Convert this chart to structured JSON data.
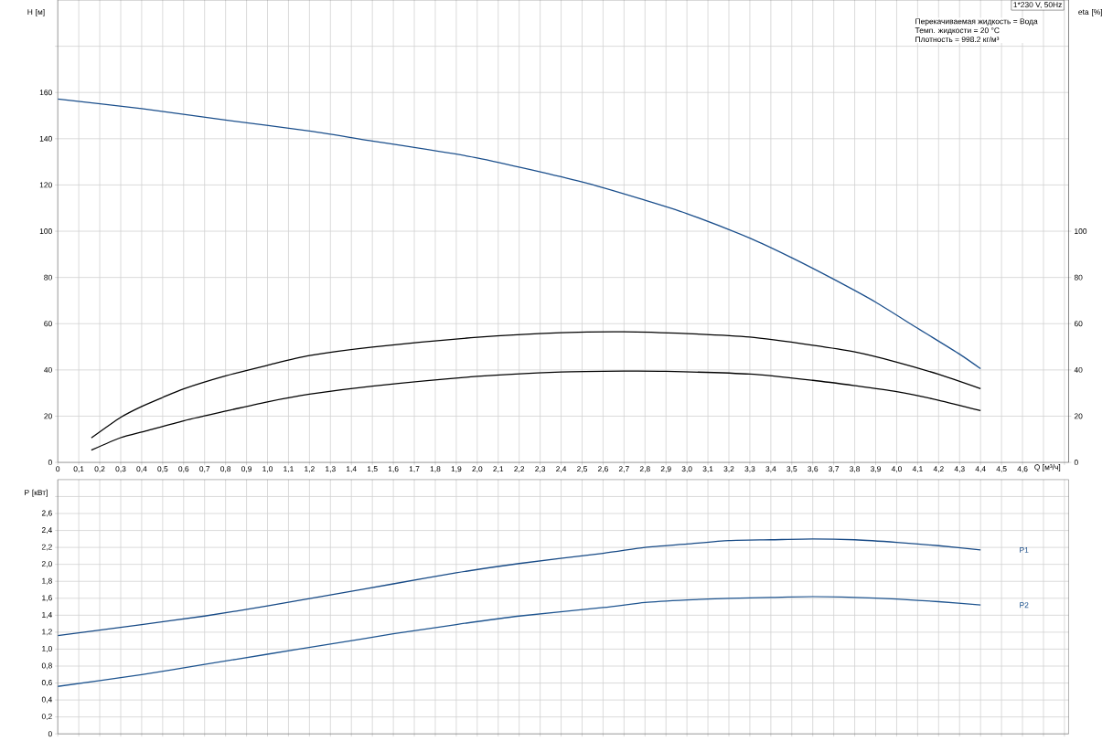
{
  "chart_data": [
    {
      "type": "line",
      "ylabel": "H [м]",
      "y2label": "eta [%]",
      "xlabel": "Q [м³/ч]",
      "annotations": [
        "1*230 V, 50Hz",
        "Перекачиваемая жидкость = Вода",
        "Темп. жидкости = 20 °C",
        "Плотность = 998.2 кг/м³"
      ],
      "xlim": [
        0,
        4.82
      ],
      "ylim": [
        0,
        200
      ],
      "y2lim": [
        0,
        200
      ],
      "grid": true,
      "xticks": [
        0,
        {
          "value": 0.1,
          "label": "0,1"
        },
        {
          "value": 0.2,
          "label": "0,2"
        },
        {
          "value": 0.3,
          "label": "0,3"
        },
        {
          "value": 0.4,
          "label": "0,4"
        },
        {
          "value": 0.5,
          "label": "0,5"
        },
        {
          "value": 0.6,
          "label": "0,6"
        },
        {
          "value": 0.7,
          "label": "0,7"
        },
        {
          "value": 0.8,
          "label": "0,8"
        },
        {
          "value": 0.9,
          "label": "0,9"
        },
        {
          "value": 1.0,
          "label": "1,0"
        },
        {
          "value": 1.1,
          "label": "1,1"
        },
        {
          "value": 1.2,
          "label": "1,2"
        },
        {
          "value": 1.3,
          "label": "1,3"
        },
        {
          "value": 1.4,
          "label": "1,4"
        },
        {
          "value": 1.5,
          "label": "1,5"
        },
        {
          "value": 1.6,
          "label": "1,6"
        },
        {
          "value": 1.7,
          "label": "1,7"
        },
        {
          "value": 1.8,
          "label": "1,8"
        },
        {
          "value": 1.9,
          "label": "1,9"
        },
        {
          "value": 2.0,
          "label": "2,0"
        },
        {
          "value": 2.1,
          "label": "2,1"
        },
        {
          "value": 2.2,
          "label": "2,2"
        },
        {
          "value": 2.3,
          "label": "2,3"
        },
        {
          "value": 2.4,
          "label": "2,4"
        },
        {
          "value": 2.5,
          "label": "2,5"
        },
        {
          "value": 2.6,
          "label": "2,6"
        },
        {
          "value": 2.7,
          "label": "2,7"
        },
        {
          "value": 2.8,
          "label": "2,8"
        },
        {
          "value": 2.9,
          "label": "2,9"
        },
        {
          "value": 3.0,
          "label": "3,0"
        },
        {
          "value": 3.1,
          "label": "3,1"
        },
        {
          "value": 3.2,
          "label": "3,2"
        },
        {
          "value": 3.3,
          "label": "3,3"
        },
        {
          "value": 3.4,
          "label": "3,4"
        },
        {
          "value": 3.5,
          "label": "3,5"
        },
        {
          "value": 3.6,
          "label": "3,6"
        },
        {
          "value": 3.7,
          "label": "3,7"
        },
        {
          "value": 3.8,
          "label": "3,8"
        },
        {
          "value": 3.9,
          "label": "3,9"
        },
        {
          "value": 4.0,
          "label": "4,0"
        },
        {
          "value": 4.1,
          "label": "4,1"
        },
        {
          "value": 4.2,
          "label": "4,2"
        },
        {
          "value": 4.3,
          "label": "4,3"
        },
        {
          "value": 4.4,
          "label": "4,4"
        },
        {
          "value": 4.5,
          "label": "4,5"
        },
        {
          "value": 4.6,
          "label": "4,6"
        },
        {
          "value": 4.7,
          "label": null
        },
        {
          "value": 4.8,
          "label": null
        }
      ],
      "yticks": [
        0,
        20,
        40,
        60,
        80,
        100,
        120,
        140,
        160,
        {
          "value": 180,
          "label": null
        }
      ],
      "y2ticks": [
        0,
        20,
        40,
        60,
        80,
        100
      ],
      "series": [
        {
          "color": "#1b4f8c",
          "x": [
            0,
            0.4,
            0.8,
            1.2,
            1.5,
            2.0,
            2.5,
            2.8,
            3.0,
            3.3,
            3.5,
            3.7,
            3.9,
            4.1,
            4.3,
            4.4
          ],
          "values": [
            157.2,
            153,
            148.1,
            143.3,
            139,
            131.7,
            121.3,
            113.4,
            107.6,
            97,
            88.5,
            79.2,
            69.3,
            58,
            46.8,
            40.5
          ]
        },
        {
          "color": "#000000",
          "axis": "y2",
          "x": [
            0.16,
            0.3,
            0.4,
            0.5,
            0.6,
            0.8,
            1.0,
            1.2,
            1.5,
            2.0,
            2.4,
            2.7,
            3.0,
            3.3,
            3.6,
            3.8,
            4.0,
            4.2,
            4.4
          ],
          "values": [
            10.6,
            19.5,
            24.2,
            28.1,
            31.8,
            37.4,
            42,
            46.2,
            49.9,
            54.1,
            56.1,
            56.5,
            55.7,
            54.2,
            50.7,
            47.8,
            43.4,
            38.1,
            31.9
          ]
        },
        {
          "color": "#000000",
          "axis": "y2",
          "x": [
            0.16,
            0.3,
            0.42,
            0.6,
            0.8,
            1.0,
            1.2,
            1.5,
            2.0,
            2.4,
            2.7,
            2.9,
            3.3,
            3.6,
            3.8,
            4.0,
            4.2,
            4.4
          ],
          "values": [
            5.3,
            10.7,
            13.6,
            18,
            22.2,
            26.2,
            29.5,
            33,
            37.2,
            39.1,
            39.5,
            39.4,
            38.2,
            35.5,
            33.2,
            30.6,
            26.9,
            22.4
          ]
        }
      ]
    },
    {
      "type": "line",
      "ylabel": "P [кВт]",
      "xlim": [
        0,
        4.82
      ],
      "ylim": [
        0,
        3.0
      ],
      "grid": true,
      "tick_labels": "y",
      "xticks": [
        0,
        0.1,
        0.2,
        0.3,
        0.4,
        0.5,
        0.6,
        0.7,
        0.8,
        0.9,
        1.0,
        1.1,
        1.2,
        1.3,
        1.4,
        1.5,
        1.6,
        1.7,
        1.8,
        1.9,
        2.0,
        2.1,
        2.2,
        2.3,
        2.4,
        2.5,
        2.6,
        2.7,
        2.8,
        2.9,
        3.0,
        3.1,
        3.2,
        3.3,
        3.4,
        3.5,
        3.6,
        3.7,
        3.8,
        3.9,
        4.0,
        4.1,
        4.2,
        4.3,
        4.4,
        4.5,
        4.6,
        4.7,
        4.8
      ],
      "yticks": [
        0,
        {
          "value": 0.2,
          "label": "0,2"
        },
        {
          "value": 0.4,
          "label": "0,4"
        },
        {
          "value": 0.6,
          "label": "0,6"
        },
        {
          "value": 0.8,
          "label": "0,8"
        },
        {
          "value": 1.0,
          "label": "1,0"
        },
        {
          "value": 1.2,
          "label": "1,2"
        },
        {
          "value": 1.4,
          "label": "1,4"
        },
        {
          "value": 1.6,
          "label": "1,6"
        },
        {
          "value": 1.8,
          "label": "1,8"
        },
        {
          "value": 2.0,
          "label": "2,0"
        },
        {
          "value": 2.2,
          "label": "2,2"
        },
        {
          "value": 2.4,
          "label": "2,4"
        },
        {
          "value": 2.6,
          "label": "2,6"
        },
        {
          "value": 2.8,
          "label": null
        }
      ],
      "series": [
        {
          "name": "P1",
          "color": "#174a86",
          "x": [
            0,
            0.4,
            0.7,
            1.0,
            1.3,
            1.6,
            1.9,
            2.2,
            2.6,
            2.8,
            3.0,
            3.2,
            3.4,
            3.6,
            3.8,
            4.0,
            4.2,
            4.4
          ],
          "values": [
            1.16,
            1.29,
            1.39,
            1.51,
            1.64,
            1.77,
            1.9,
            2.01,
            2.13,
            2.2,
            2.24,
            2.28,
            2.29,
            2.3,
            2.29,
            2.26,
            2.22,
            2.17
          ]
        },
        {
          "name": "P2",
          "color": "#1f5590",
          "x": [
            0,
            0.4,
            0.7,
            1.0,
            1.3,
            1.6,
            1.9,
            2.2,
            2.6,
            2.8,
            3.0,
            3.2,
            3.4,
            3.6,
            3.8,
            4.0,
            4.2,
            4.4
          ],
          "values": [
            0.56,
            0.7,
            0.82,
            0.94,
            1.06,
            1.18,
            1.29,
            1.39,
            1.49,
            1.55,
            1.58,
            1.6,
            1.61,
            1.62,
            1.61,
            1.59,
            1.56,
            1.52
          ]
        }
      ]
    }
  ]
}
